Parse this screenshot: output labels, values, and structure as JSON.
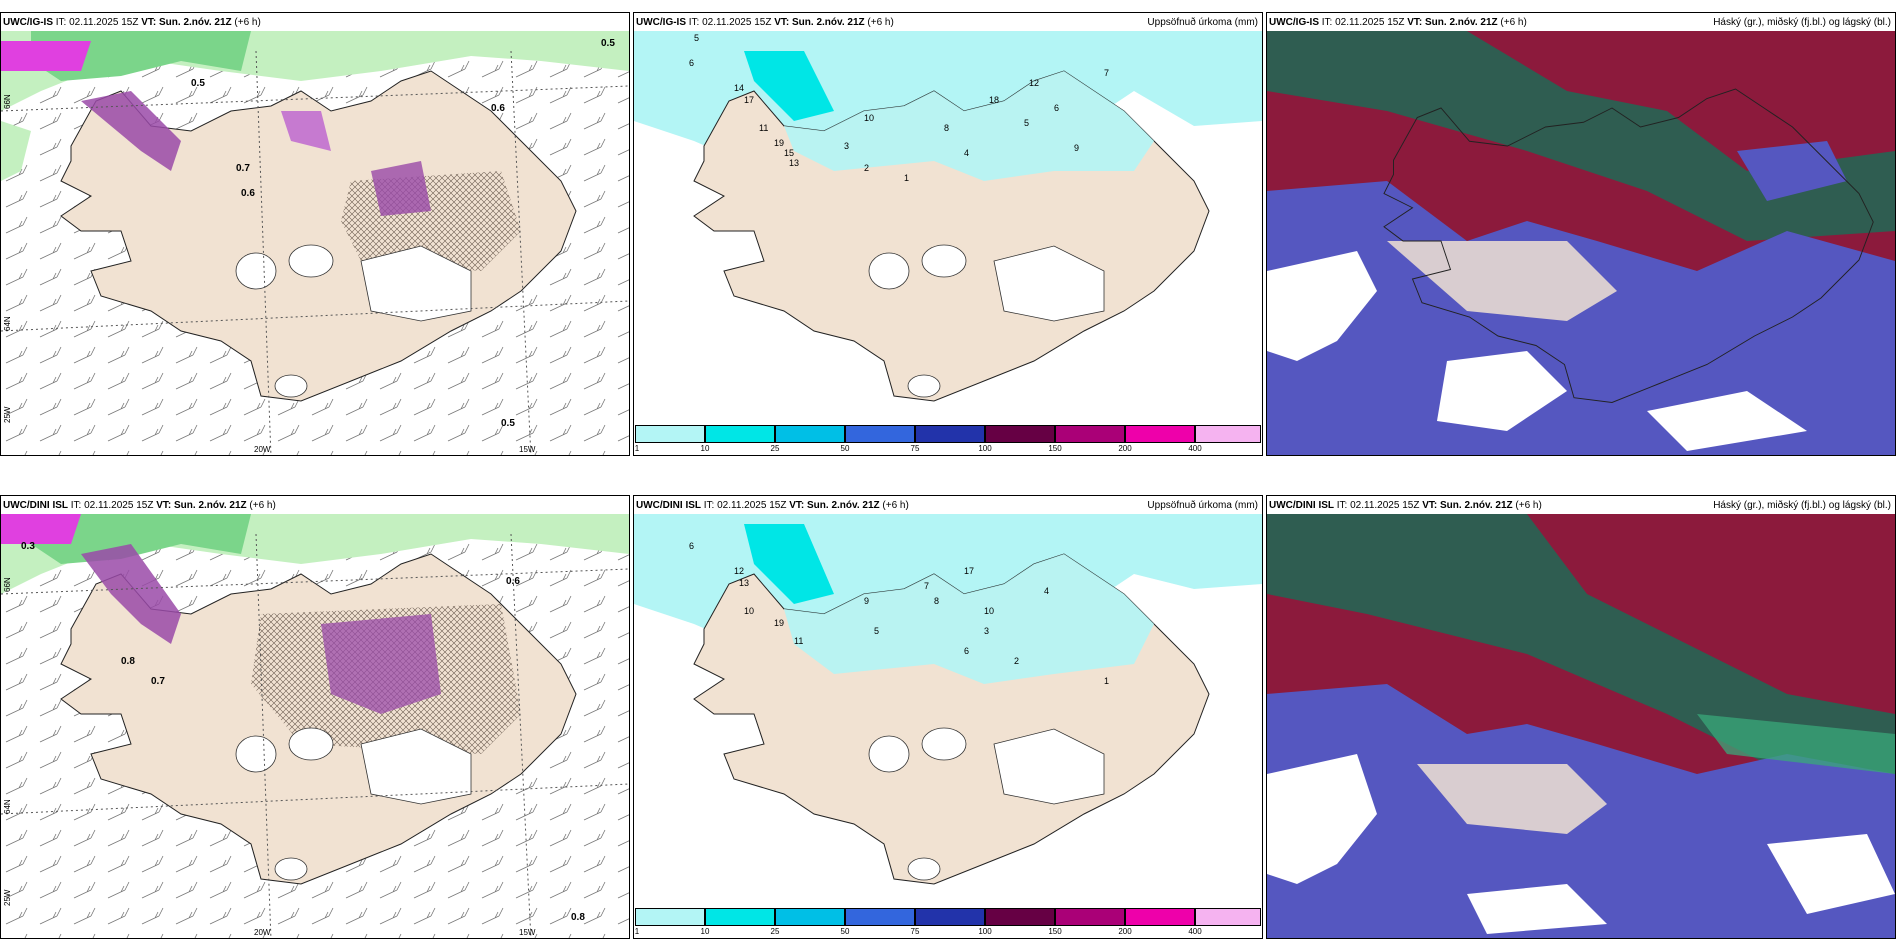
{
  "panels": [
    {
      "model": "UWC/IG-IS",
      "it_label": "IT:",
      "it_value": "02.11.2025 15Z",
      "vt_label": "VT:",
      "vt_value": "Sun. 2.nóv. 21Z",
      "offset": "(+6 h)",
      "right_title": ""
    },
    {
      "model": "UWC/IG-IS",
      "it_label": "IT:",
      "it_value": "02.11.2025 15Z",
      "vt_label": "VT:",
      "vt_value": "Sun. 2.nóv. 21Z",
      "offset": "(+6 h)",
      "right_title": "Uppsöfnuð úrkoma (mm)"
    },
    {
      "model": "UWC/IG-IS",
      "it_label": "IT:",
      "it_value": "02.11.2025 15Z",
      "vt_label": "VT:",
      "vt_value": "Sun. 2.nóv. 21Z",
      "offset": "(+6 h)",
      "right_title": "Háský (gr.), miðský (fj.bl.) og lágský (bl.)"
    },
    {
      "model": "UWC/DINI ISL",
      "it_label": "IT:",
      "it_value": "02.11.2025 15Z",
      "vt_label": "VT:",
      "vt_value": "Sun. 2.nóv. 21Z",
      "offset": "(+6 h)",
      "right_title": ""
    },
    {
      "model": "UWC/DINI ISL",
      "it_label": "IT:",
      "it_value": "02.11.2025 15Z",
      "vt_label": "VT:",
      "vt_value": "Sun. 2.nóv. 21Z",
      "offset": "(+6 h)",
      "right_title": "Uppsöfnuð úrkoma (mm)"
    },
    {
      "model": "UWC/DINI ISL",
      "it_label": "IT:",
      "it_value": "02.11.2025 15Z",
      "vt_label": "VT:",
      "vt_value": "Sun. 2.nóv. 21Z",
      "offset": "(+6 h)",
      "right_title": "Háský (gr.), miðský (fj.bl.) og lágský (bl.)"
    }
  ],
  "axes": {
    "lon_20w": "20W",
    "lon_15w": "15W",
    "lat_66n": "66N",
    "lat_64n": "64N",
    "lon_25w": "25W"
  },
  "precip_colorbar": {
    "ticks": [
      "1",
      "10",
      "25",
      "50",
      "75",
      "100",
      "150",
      "200",
      "400"
    ],
    "colors": [
      "#b3f5f5",
      "#00e6e6",
      "#00bfe6",
      "#3366dd",
      "#2233aa",
      "#660044",
      "#aa0077",
      "#ee00aa",
      "#f5b3f0"
    ]
  },
  "colors": {
    "land": "#f1e2d2",
    "ocean": "#ffffff",
    "light_precip": "#b3f5f5",
    "snow_green_light": "#c4f0c0",
    "snow_green_dark": "#2e8b57",
    "snow_purple": "#9a4aa8",
    "snow_magenta": "#e040e0",
    "cloud_high": "#1e6a55",
    "cloud_mid": "#8c1a3c",
    "cloud_low": "#5557c0"
  },
  "wind_labels_top": [
    "0.5",
    "0.6",
    "0.7",
    "0.5",
    "0.5",
    "0.6"
  ],
  "wind_labels_bottom": [
    "0.3",
    "0.8",
    "0.7",
    "0.6",
    "0.8"
  ],
  "precip_values_top": [
    "5",
    "6",
    "14",
    "17",
    "11",
    "19",
    "15",
    "13",
    "10",
    "3",
    "2",
    "1",
    "4",
    "5",
    "6",
    "7",
    "8",
    "9",
    "12",
    "18"
  ],
  "precip_values_bottom": [
    "6",
    "12",
    "13",
    "10",
    "19",
    "11",
    "9",
    "7",
    "8",
    "5",
    "3",
    "2",
    "1",
    "4",
    "6",
    "10",
    "17"
  ]
}
